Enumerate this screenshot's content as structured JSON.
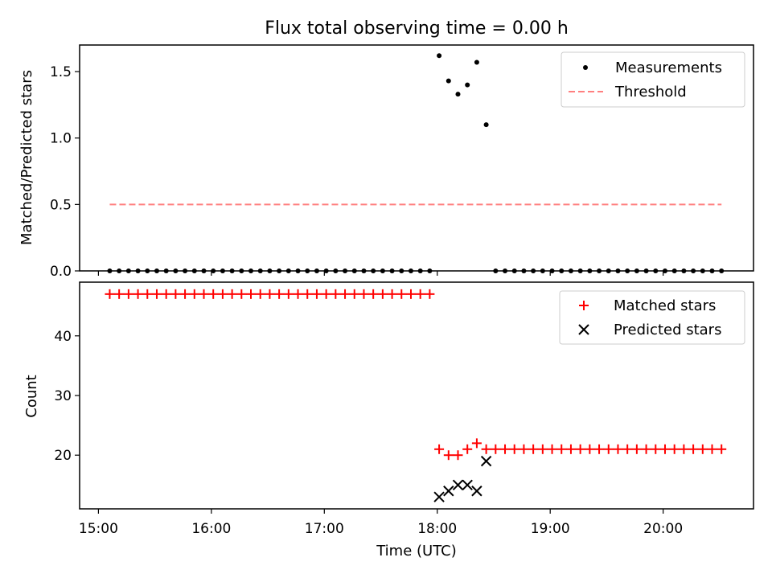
{
  "title": "Flux total observing time = 0.00 h",
  "colors": {
    "red": "#ff0000",
    "threshold": "#ff7f7f",
    "black": "#000000"
  },
  "chart_data": [
    {
      "type": "scatter",
      "ylabel": "Matched/Predicted stars",
      "ylim": [
        0,
        1.7
      ],
      "yticks": [
        0,
        0.5,
        1.0,
        1.5
      ],
      "ytick_labels": [
        "0.0",
        "0.5",
        "1.0",
        "1.5"
      ],
      "legend_position": "top-right",
      "series": [
        {
          "name": "Measurements",
          "marker": "dot",
          "x": [
            "15:06",
            "15:11",
            "15:16",
            "15:21",
            "15:26",
            "15:31",
            "15:36",
            "15:41",
            "15:46",
            "15:51",
            "15:56",
            "16:01",
            "16:06",
            "16:11",
            "16:16",
            "16:21",
            "16:26",
            "16:31",
            "16:36",
            "16:41",
            "16:46",
            "16:51",
            "16:56",
            "17:01",
            "17:06",
            "17:11",
            "17:16",
            "17:21",
            "17:26",
            "17:31",
            "17:36",
            "17:41",
            "17:46",
            "17:51",
            "17:56",
            "18:01",
            "18:06",
            "18:11",
            "18:16",
            "18:21",
            "18:26",
            "18:31",
            "18:36",
            "18:41",
            "18:46",
            "18:51",
            "18:56",
            "19:01",
            "19:06",
            "19:11",
            "19:16",
            "19:21",
            "19:26",
            "19:31",
            "19:36",
            "19:41",
            "19:46",
            "19:51",
            "19:56",
            "20:01",
            "20:06",
            "20:11",
            "20:16",
            "20:21",
            "20:26",
            "20:31"
          ],
          "values": [
            0,
            0,
            0,
            0,
            0,
            0,
            0,
            0,
            0,
            0,
            0,
            0,
            0,
            0,
            0,
            0,
            0,
            0,
            0,
            0,
            0,
            0,
            0,
            0,
            0,
            0,
            0,
            0,
            0,
            0,
            0,
            0,
            0,
            0,
            0,
            1.62,
            1.43,
            1.33,
            1.4,
            1.57,
            1.1,
            0,
            0,
            0,
            0,
            0,
            0,
            0,
            0,
            0,
            0,
            0,
            0,
            0,
            0,
            0,
            0,
            0,
            0,
            0,
            0,
            0,
            0,
            0,
            0,
            0
          ]
        },
        {
          "name": "Threshold",
          "style": "dashed",
          "x": [
            "15:06",
            "20:31"
          ],
          "values": [
            0.5,
            0.5
          ]
        }
      ]
    },
    {
      "type": "scatter",
      "ylabel": "Count",
      "xlabel": "Time (UTC)",
      "ylim": [
        11,
        49
      ],
      "yticks": [
        20,
        30,
        40
      ],
      "ytick_labels": [
        "20",
        "30",
        "40"
      ],
      "xticks": [
        "15:00",
        "16:00",
        "17:00",
        "18:00",
        "19:00",
        "20:00"
      ],
      "xlim": [
        "14:50",
        "20:48"
      ],
      "legend_position": "top-right",
      "series": [
        {
          "name": "Matched stars",
          "marker": "plus",
          "x": [
            "15:06",
            "15:11",
            "15:16",
            "15:21",
            "15:26",
            "15:31",
            "15:36",
            "15:41",
            "15:46",
            "15:51",
            "15:56",
            "16:01",
            "16:06",
            "16:11",
            "16:16",
            "16:21",
            "16:26",
            "16:31",
            "16:36",
            "16:41",
            "16:46",
            "16:51",
            "16:56",
            "17:01",
            "17:06",
            "17:11",
            "17:16",
            "17:21",
            "17:26",
            "17:31",
            "17:36",
            "17:41",
            "17:46",
            "17:51",
            "17:56",
            "18:01",
            "18:06",
            "18:11",
            "18:16",
            "18:21",
            "18:26",
            "18:31",
            "18:36",
            "18:41",
            "18:46",
            "18:51",
            "18:56",
            "19:01",
            "19:06",
            "19:11",
            "19:16",
            "19:21",
            "19:26",
            "19:31",
            "19:36",
            "19:41",
            "19:46",
            "19:51",
            "19:56",
            "20:01",
            "20:06",
            "20:11",
            "20:16",
            "20:21",
            "20:26",
            "20:31"
          ],
          "values": [
            47,
            47,
            47,
            47,
            47,
            47,
            47,
            47,
            47,
            47,
            47,
            47,
            47,
            47,
            47,
            47,
            47,
            47,
            47,
            47,
            47,
            47,
            47,
            47,
            47,
            47,
            47,
            47,
            47,
            47,
            47,
            47,
            47,
            47,
            47,
            21,
            20,
            20,
            21,
            22,
            21,
            21,
            21,
            21,
            21,
            21,
            21,
            21,
            21,
            21,
            21,
            21,
            21,
            21,
            21,
            21,
            21,
            21,
            21,
            21,
            21,
            21,
            21,
            21,
            21,
            21
          ]
        },
        {
          "name": "Predicted stars",
          "marker": "x",
          "x": [
            "18:01",
            "18:06",
            "18:11",
            "18:16",
            "18:21",
            "18:26"
          ],
          "values": [
            13,
            14,
            15,
            15,
            14,
            19
          ]
        }
      ]
    }
  ]
}
